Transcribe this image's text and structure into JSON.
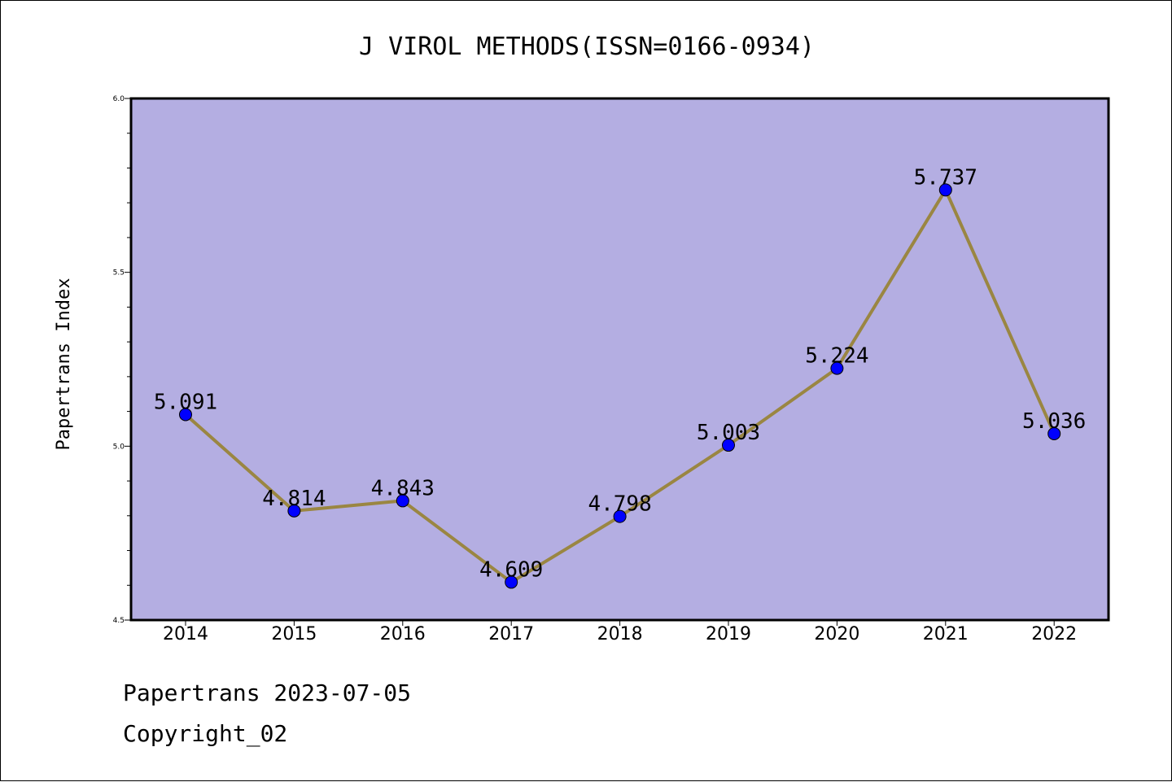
{
  "chart_data": {
    "type": "line",
    "title": "J VIROL METHODS(ISSN=0166-0934)",
    "xlabel": "",
    "ylabel": "Papertrans Index",
    "categories": [
      "2014",
      "2015",
      "2016",
      "2017",
      "2018",
      "2019",
      "2020",
      "2021",
      "2022"
    ],
    "series": [
      {
        "values": [
          5.091,
          4.814,
          4.843,
          4.609,
          4.798,
          5.003,
          5.224,
          5.737,
          5.036
        ],
        "labels": [
          "5.091",
          "4.814",
          "4.843",
          "4.609",
          "4.798",
          "5.003",
          "5.224",
          "5.737",
          "5.036"
        ]
      }
    ],
    "ylim": [
      4.5,
      6.0
    ],
    "yticks": [
      "4.5",
      "5.0",
      "5.5",
      "6.0"
    ],
    "grid": false,
    "colors": {
      "plot_background": "#b4aee2",
      "line": "#9a8642",
      "marker": "#0000ff"
    }
  },
  "footer": {
    "line1": "Papertrans 2023-07-05",
    "line2": "Copyright_02"
  }
}
